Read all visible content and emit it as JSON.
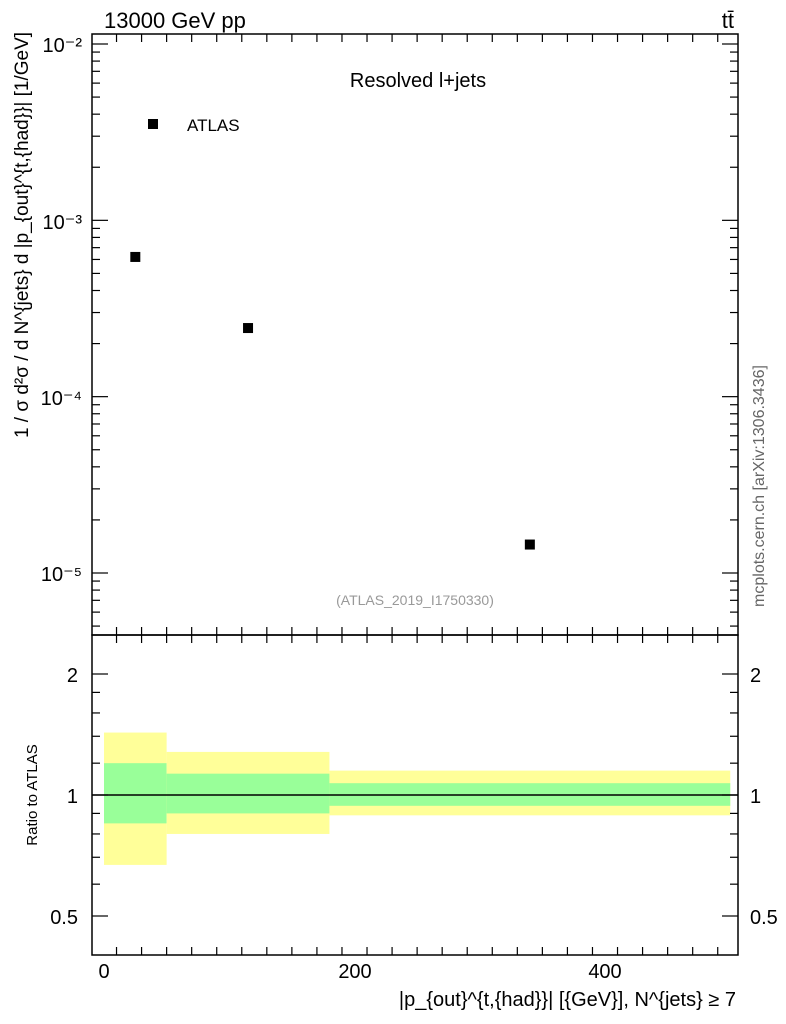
{
  "header": {
    "energy_label": "13000 GeV pp",
    "process_label": "tt̄"
  },
  "main_plot": {
    "title": "Resolved l+jets",
    "legend_label": "ATLAS",
    "analysis_id": "(ATLAS_2019_I1750330)",
    "ylabel": "1 / σ d²σ / d N^{jets} d |p_{out}^{t,{had}}| [1/GeV]",
    "ytick_labels": [
      "10⁻²",
      "10⁻³",
      "10⁻⁴",
      "10⁻⁵"
    ]
  },
  "ratio_plot": {
    "ylabel": "Ratio to ATLAS",
    "ytick_labels": [
      "2",
      "1",
      "0.5"
    ]
  },
  "x_axis": {
    "label": "|p_{out}^{t,{had}}| [{GeV}], N^{jets} ≥ 7",
    "tick_labels": [
      "0",
      "200",
      "400"
    ]
  },
  "side_label": "mcplots.cern.ch [arXiv:1306.3436]",
  "chart_data": [
    {
      "type": "scatter",
      "title": "Resolved l+jets",
      "xlabel": "|p_{out}^{t,{had}}| [{GeV}], N^{jets} ≥ 7",
      "ylabel": "1 / σ d²σ / d N^{jets} d |p_{out}^{t,{had}}| [1/GeV]",
      "xlim": [
        -10,
        510
      ],
      "ylim": [
        4.2e-06,
        0.011
      ],
      "yscale": "log",
      "legend_position": "top-left",
      "series": [
        {
          "name": "ATLAS",
          "color": "#000000",
          "marker": "square",
          "points": [
            {
              "x": 25,
              "y": 0.00062
            },
            {
              "x": 115,
              "y": 0.000245
            },
            {
              "x": 340,
              "y": 1.45e-05
            }
          ]
        }
      ]
    },
    {
      "type": "area",
      "ylabel": "Ratio to ATLAS",
      "xlim": [
        -10,
        510
      ],
      "ylim": [
        0.42,
        2.4
      ],
      "yscale": "log",
      "reference_line": 1,
      "bins": [
        {
          "x_low": 0,
          "x_high": 50,
          "yellow": [
            0.67,
            1.43
          ],
          "green": [
            0.85,
            1.2
          ]
        },
        {
          "x_low": 50,
          "x_high": 180,
          "yellow": [
            0.8,
            1.28
          ],
          "green": [
            0.9,
            1.13
          ]
        },
        {
          "x_low": 180,
          "x_high": 500,
          "yellow": [
            0.89,
            1.15
          ],
          "green": [
            0.94,
            1.07
          ]
        }
      ],
      "colors": {
        "yellow": "#ffff99",
        "green": "#99ff99"
      }
    }
  ]
}
